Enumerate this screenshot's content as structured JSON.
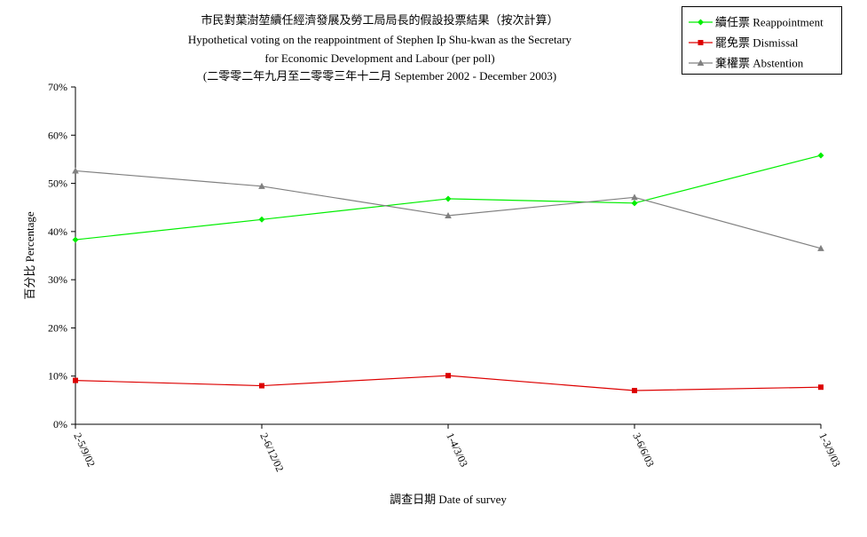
{
  "chart_data": {
    "type": "line",
    "title_lines": [
      "市民對葉澍堃續任經濟發展及勞工局局長的假設投票結果（按次計算）",
      "Hypothetical voting on the reappointment of Stephen Ip Shu-kwan as the Secretary",
      "for Economic Development and Labour (per poll)",
      "(二零零二年九月至二零零三年十二月 September 2002 - December 2003)"
    ],
    "xlabel": "調查日期 Date of survey",
    "ylabel": "百分比 Percentage",
    "categories": [
      "2-5/9/02",
      "2-6/12/02",
      "1-4/3/03",
      "3-6/6/03",
      "1-3/9/03"
    ],
    "y_ticks": [
      "0%",
      "10%",
      "20%",
      "30%",
      "40%",
      "50%",
      "60%",
      "70%"
    ],
    "ylim": [
      0,
      70
    ],
    "legend_position": "top-right",
    "series": [
      {
        "name": "續任票 Reappointment",
        "color": "#00ee00",
        "marker": "diamond",
        "values": [
          38.3,
          42.5,
          46.8,
          45.9,
          55.8
        ]
      },
      {
        "name": "罷免票 Dismissal",
        "color": "#dd0000",
        "marker": "square",
        "values": [
          9.1,
          8.0,
          10.1,
          7.0,
          7.7
        ]
      },
      {
        "name": "棄權票 Abstention",
        "color": "#808080",
        "marker": "triangle",
        "values": [
          52.6,
          49.4,
          43.3,
          47.1,
          36.5
        ]
      }
    ]
  }
}
